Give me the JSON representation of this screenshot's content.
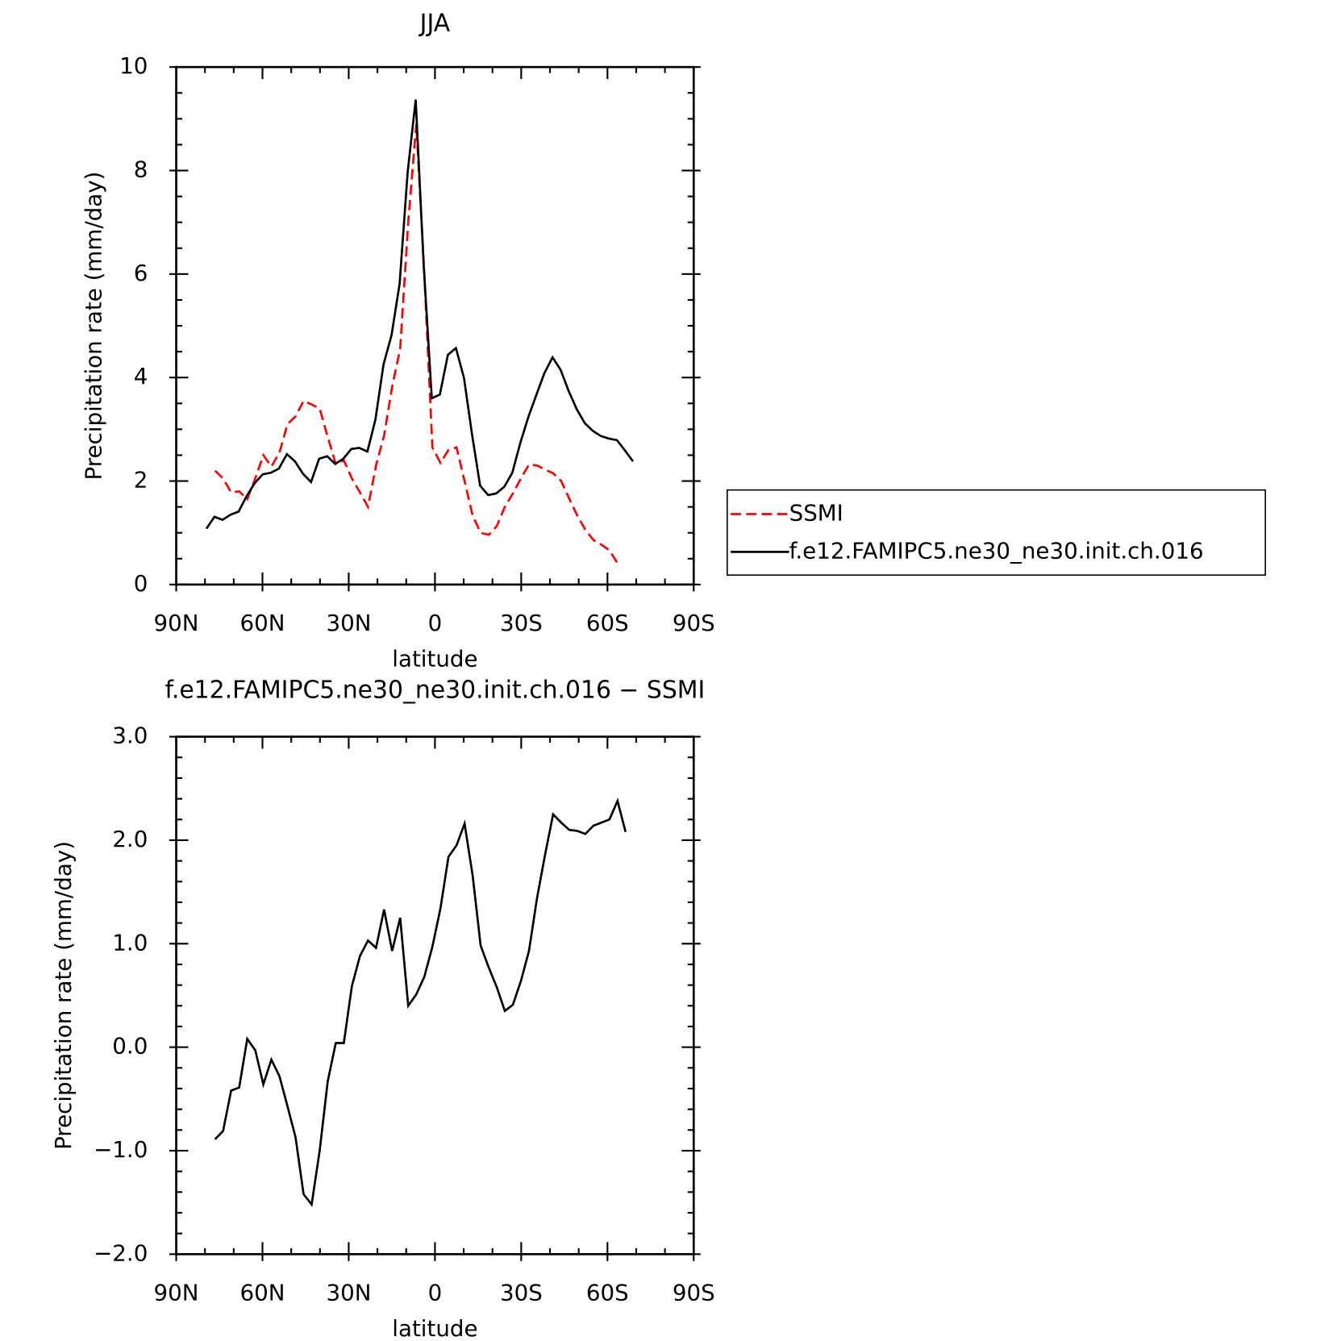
{
  "chart_data": [
    {
      "type": "line",
      "title": "JJA",
      "xlabel": "latitude",
      "ylabel": "Precipitation rate (mm/day)",
      "xlim": [
        90,
        -90
      ],
      "xticks": [
        {
          "value": 90,
          "label": "90N"
        },
        {
          "value": 60,
          "label": "60N"
        },
        {
          "value": 30,
          "label": "30N"
        },
        0,
        {
          "value": -30,
          "label": "30S"
        },
        {
          "value": -60,
          "label": "60S"
        },
        {
          "value": -90,
          "label": "90S"
        }
      ],
      "xminorticks": [
        80,
        70,
        50,
        40,
        20,
        10,
        -10,
        -20,
        -40,
        -50,
        -70,
        -80
      ],
      "ylim": [
        0,
        10
      ],
      "yticks": [
        0,
        2,
        4,
        6,
        8,
        10
      ],
      "yminorticks": [
        0.5,
        1,
        1.5,
        2.5,
        3,
        3.5,
        4.5,
        5,
        5.5,
        6.5,
        7,
        7.5,
        8.5,
        9,
        9.5
      ],
      "legend": true,
      "legend_loc": "right",
      "series": [
        {
          "name": "SSMI",
          "color": "#ff0000",
          "dash": true,
          "x": [
            76.5,
            73.7,
            70.9,
            68.1,
            65.3,
            62.5,
            59.7,
            56.9,
            54.1,
            51.3,
            48.5,
            45.7,
            42.9,
            40.1,
            37.3,
            34.5,
            31.7,
            28.9,
            26.1,
            23.3,
            20.5,
            17.7,
            14.9,
            12.1,
            9.3,
            6.5,
            3.7,
            0.9,
            -1.9,
            -4.7,
            -7.5,
            -10.3,
            -13.1,
            -15.9,
            -18.7,
            -21.5,
            -24.3,
            -27.1,
            -29.9,
            -32.7,
            -35.5,
            -38.3,
            -41.1,
            -43.9,
            -46.7,
            -49.5,
            -52.3,
            -55.1,
            -57.9,
            -60.7,
            -63.5
          ],
          "values": [
            2.2,
            2.05,
            1.78,
            1.8,
            1.65,
            2.05,
            2.5,
            2.28,
            2.55,
            3.1,
            3.25,
            3.55,
            3.48,
            3.4,
            2.85,
            2.33,
            2.4,
            2.05,
            1.78,
            1.5,
            2.3,
            2.88,
            3.82,
            4.56,
            7.0,
            8.9,
            6.0,
            2.65,
            2.35,
            2.6,
            2.65,
            2.0,
            1.33,
            1.0,
            0.96,
            1.13,
            1.5,
            1.76,
            2.05,
            2.32,
            2.3,
            2.22,
            2.15,
            2.0,
            1.66,
            1.33,
            1.06,
            0.86,
            0.77,
            0.66,
            0.41
          ]
        },
        {
          "name": "f.e12.FAMIPC5.ne30_ne30.init.ch.016",
          "color": "#000000",
          "dash": false,
          "x": [
            79.5,
            76.7,
            73.9,
            71.1,
            68.3,
            65.5,
            62.7,
            59.9,
            57.1,
            54.3,
            51.5,
            48.7,
            45.9,
            43.1,
            40.3,
            37.5,
            34.7,
            31.9,
            29.1,
            26.3,
            23.5,
            20.7,
            17.9,
            15.1,
            12.3,
            9.5,
            6.7,
            3.9,
            1.1,
            -1.7,
            -4.5,
            -7.3,
            -10.1,
            -12.9,
            -15.7,
            -18.5,
            -21.3,
            -24.1,
            -26.9,
            -29.7,
            -32.5,
            -35.3,
            -38.1,
            -40.9,
            -43.7,
            -46.5,
            -49.3,
            -52.1,
            -54.9,
            -57.7,
            -60.5,
            -63.3,
            -66.1,
            -68.9
          ],
          "values": [
            1.08,
            1.31,
            1.25,
            1.35,
            1.41,
            1.71,
            1.96,
            2.13,
            2.16,
            2.24,
            2.52,
            2.38,
            2.14,
            1.98,
            2.43,
            2.48,
            2.33,
            2.43,
            2.62,
            2.64,
            2.57,
            3.19,
            4.25,
            4.82,
            5.81,
            7.97,
            9.37,
            6.15,
            3.6,
            3.67,
            4.44,
            4.57,
            3.99,
            2.9,
            1.91,
            1.73,
            1.76,
            1.89,
            2.16,
            2.74,
            3.24,
            3.67,
            4.09,
            4.39,
            4.15,
            3.74,
            3.39,
            3.12,
            2.97,
            2.87,
            2.82,
            2.79,
            2.59,
            2.38
          ]
        }
      ]
    },
    {
      "type": "line",
      "title": "f.e12.FAMIPC5.ne30_ne30.init.ch.016 − SSMI",
      "xlabel": "latitude",
      "ylabel": "Precipitation rate (mm/day)",
      "xlim": [
        90,
        -90
      ],
      "xticks": [
        {
          "value": 90,
          "label": "90N"
        },
        {
          "value": 60,
          "label": "60N"
        },
        {
          "value": 30,
          "label": "30N"
        },
        0,
        {
          "value": -30,
          "label": "30S"
        },
        {
          "value": -60,
          "label": "60S"
        },
        {
          "value": -90,
          "label": "90S"
        }
      ],
      "xminorticks": [
        80,
        70,
        50,
        40,
        20,
        10,
        -10,
        -20,
        -40,
        -50,
        -70,
        -80
      ],
      "ylim": [
        -2,
        3
      ],
      "yticks": [
        {
          "value": 3,
          "label": "3.0"
        },
        {
          "value": 2,
          "label": "2.0"
        },
        {
          "value": 1,
          "label": "1.0"
        },
        {
          "value": 0,
          "label": "0.0"
        },
        {
          "value": -1,
          "label": "−1.0"
        },
        {
          "value": -2,
          "label": "−2.0"
        }
      ],
      "yminorticks": [
        2.8,
        2.6,
        2.4,
        2.2,
        1.8,
        1.6,
        1.4,
        1.2,
        0.8,
        0.6,
        0.4,
        0.2,
        -0.2,
        -0.4,
        -0.6,
        -0.8,
        -1.2,
        -1.4,
        -1.6,
        -1.8
      ],
      "legend": false,
      "series": [
        {
          "color": "#000000",
          "dash": false,
          "x": [
            76.5,
            73.7,
            70.9,
            68.1,
            65.3,
            62.5,
            59.7,
            56.9,
            54.1,
            51.3,
            48.5,
            45.7,
            42.9,
            40.1,
            37.3,
            34.5,
            31.7,
            28.9,
            26.1,
            23.3,
            20.5,
            17.7,
            14.9,
            12.1,
            9.3,
            6.5,
            3.7,
            0.9,
            -1.9,
            -4.7,
            -7.5,
            -10.3,
            -13.1,
            -15.9,
            -18.7,
            -21.5,
            -24.3,
            -27.1,
            -29.9,
            -32.7,
            -35.5,
            -38.3,
            -41.1,
            -43.9,
            -46.7,
            -49.5,
            -52.3,
            -55.1,
            -57.9,
            -60.7,
            -63.5,
            -66.3
          ],
          "values": [
            -0.89,
            -0.81,
            -0.42,
            -0.39,
            0.08,
            -0.03,
            -0.36,
            -0.12,
            -0.28,
            -0.57,
            -0.87,
            -1.42,
            -1.52,
            -1.0,
            -0.33,
            0.04,
            0.04,
            0.59,
            0.88,
            1.03,
            0.96,
            1.33,
            0.93,
            1.25,
            0.4,
            0.51,
            0.68,
            0.97,
            1.34,
            1.84,
            1.95,
            2.16,
            1.66,
            0.98,
            0.77,
            0.58,
            0.35,
            0.41,
            0.64,
            0.93,
            1.44,
            1.86,
            2.25,
            2.17,
            2.1,
            2.09,
            2.06,
            2.14,
            2.17,
            2.2,
            2.38,
            2.08
          ]
        }
      ]
    }
  ]
}
